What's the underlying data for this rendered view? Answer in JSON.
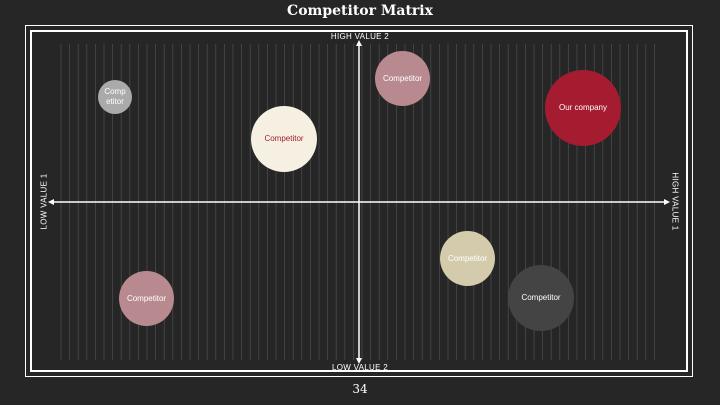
{
  "slide": {
    "title": "Competitor Matrix",
    "page_number": "34"
  },
  "axes": {
    "top": "HIGH VALUE 2",
    "bottom": "LOW VALUE 2",
    "left": "LOW VALUE 1",
    "right": "HIGH VALUE 1"
  },
  "colors": {
    "background": "#262626",
    "axis": "#ffffff",
    "grid": "#4a4a4a",
    "accent": "#a51c30"
  },
  "bubbles": [
    {
      "label": "Competitor",
      "fill": "#aaaaaa",
      "text_color": "#ffffff"
    },
    {
      "label": "Competitor",
      "fill": "#f5f0e1",
      "text_color": "#a51c30"
    },
    {
      "label": "Competitor",
      "fill": "#b88a90",
      "text_color": "#ffffff"
    },
    {
      "label": "Our company",
      "fill": "#a51c30",
      "text_color": "#ffffff"
    },
    {
      "label": "Competitor",
      "fill": "#d4cbac",
      "text_color": "#ffffff"
    },
    {
      "label": "Competitor",
      "fill": "#444444",
      "text_color": "#ffffff"
    },
    {
      "label": "Competitor",
      "fill": "#b88a90",
      "text_color": "#ffffff"
    }
  ]
}
